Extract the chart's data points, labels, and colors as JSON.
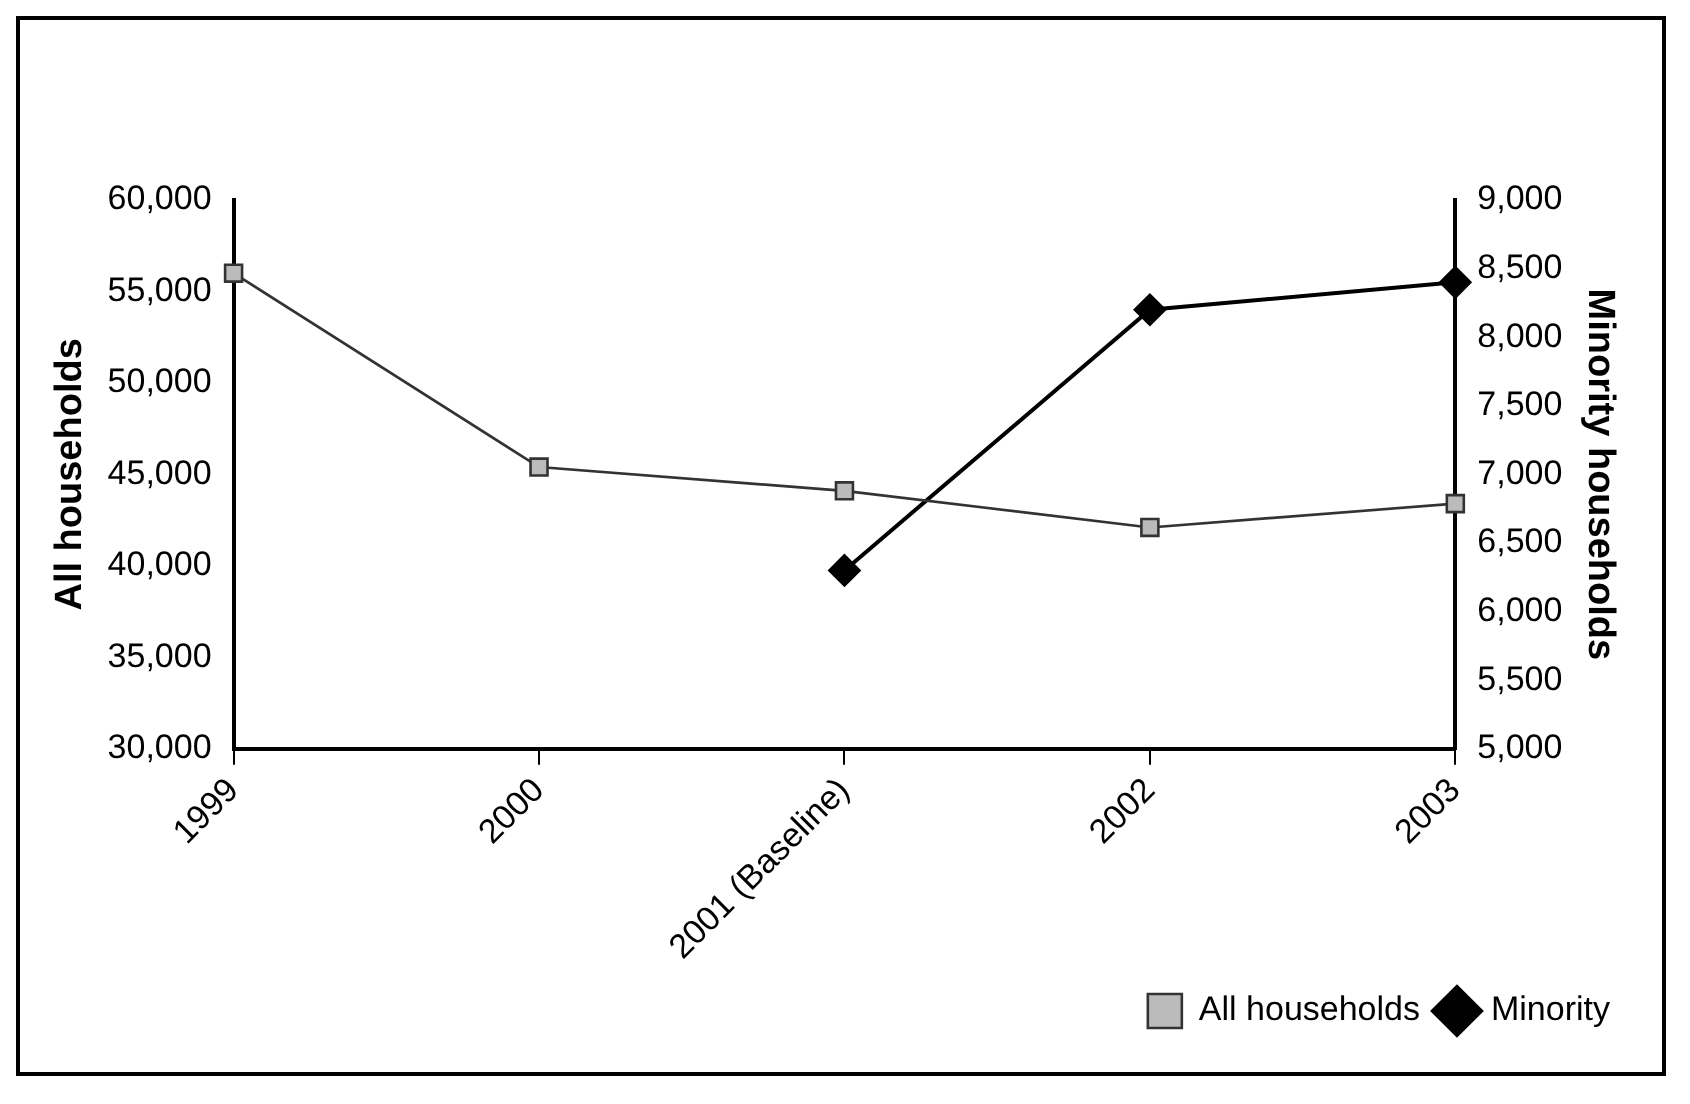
{
  "chart_data": {
    "type": "line",
    "categories": [
      "1999",
      "2000",
      "2001 (Baseline)",
      "2002",
      "2003"
    ],
    "ylabel": "All households",
    "y2label": "Minority households",
    "ylim": [
      30000,
      60000
    ],
    "yticks": [
      {
        "value": 30000,
        "label": "30,000"
      },
      {
        "value": 35000,
        "label": "35,000"
      },
      {
        "value": 40000,
        "label": "40,000"
      },
      {
        "value": 45000,
        "label": "45,000"
      },
      {
        "value": 50000,
        "label": "50,000"
      },
      {
        "value": 55000,
        "label": "55,000"
      },
      {
        "value": 60000,
        "label": "60,000"
      }
    ],
    "y2lim": [
      5000,
      9000
    ],
    "y2ticks": [
      {
        "value": 5000,
        "label": "5,000"
      },
      {
        "value": 5500,
        "label": "5,500"
      },
      {
        "value": 6000,
        "label": "6,000"
      },
      {
        "value": 6500,
        "label": "6,500"
      },
      {
        "value": 7000,
        "label": "7,000"
      },
      {
        "value": 7500,
        "label": "7,500"
      },
      {
        "value": 8000,
        "label": "8,000"
      },
      {
        "value": 8500,
        "label": "8,500"
      },
      {
        "value": 9000,
        "label": "9,000"
      }
    ],
    "grid": false,
    "legend": "bottom right",
    "series": [
      {
        "name": "All households",
        "color": "#333333",
        "marker": "square",
        "values": [
          56000,
          45400,
          44100,
          42100,
          43400
        ]
      },
      {
        "name": "Minority",
        "color": "#000000",
        "marker": "diamond",
        "axis": "y2",
        "values": [
          null,
          null,
          6300,
          8200,
          8400
        ]
      }
    ]
  }
}
